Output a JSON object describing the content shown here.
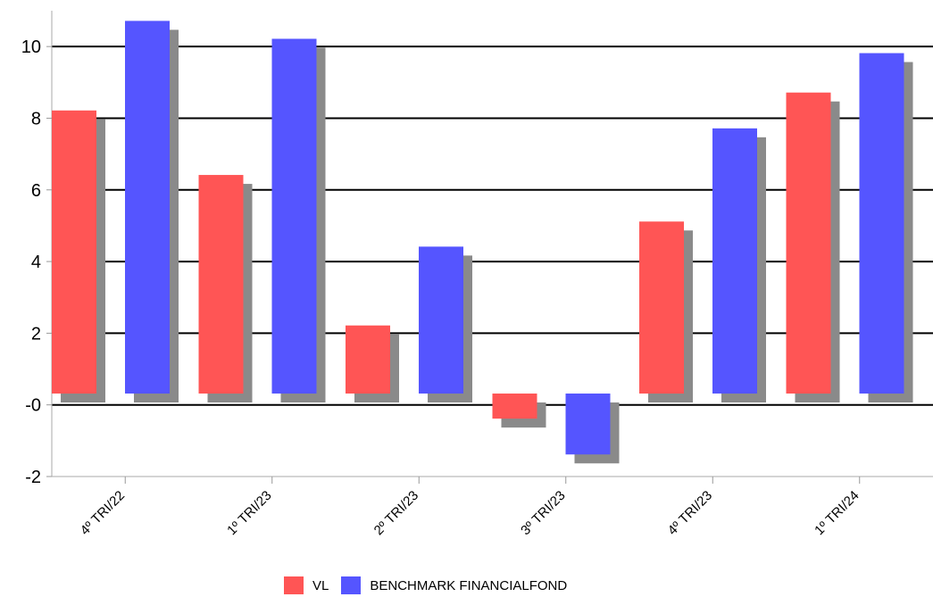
{
  "chart_data": {
    "type": "bar",
    "categories": [
      "4º TRI/22",
      "1º TRI/23",
      "2º TRI/23",
      "3º TRI/23",
      "4º TRI/23",
      "1º TRI/24"
    ],
    "series": [
      {
        "name": "VL",
        "color": "#ff5555",
        "values": [
          7.9,
          6.1,
          1.9,
          -0.7,
          4.8,
          8.4
        ]
      },
      {
        "name": "BENCHMARK FINANCIALFOND",
        "color": "#5555ff",
        "values": [
          10.4,
          9.9,
          4.1,
          -1.7,
          7.4,
          9.5
        ]
      }
    ],
    "ylim": [
      -2,
      11
    ],
    "yticks": [
      -2,
      0,
      2,
      4,
      6,
      8,
      10
    ],
    "ytick_labels": [
      "-2",
      "-0",
      "2",
      "4",
      "6",
      "8",
      "10"
    ],
    "grid": true,
    "legend_position": "bottom",
    "title": "",
    "xlabel": "",
    "ylabel": ""
  }
}
